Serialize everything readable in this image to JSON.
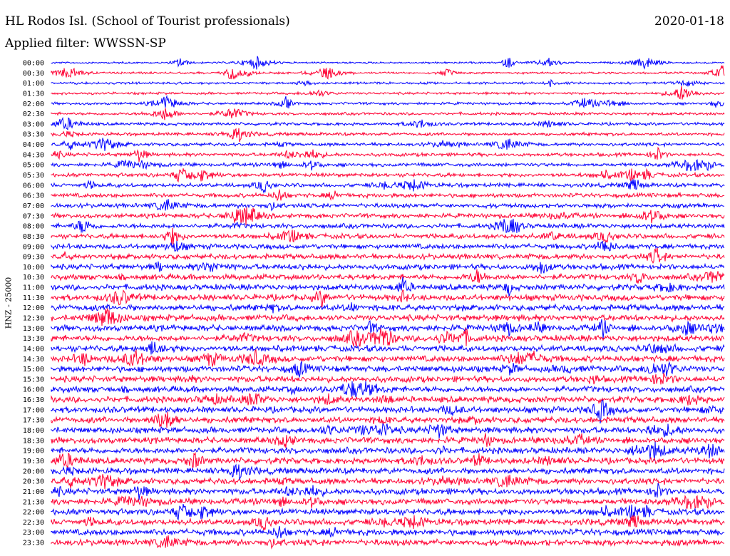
{
  "header": {
    "station": "HL Rodos Isl. (School of Tourist professionals)",
    "date": "2020-01-18",
    "filter": "Applied filter: WWSSN-SP"
  },
  "chart_data": {
    "type": "line",
    "title": "HL Rodos Isl. (School of Tourist professionals)",
    "ylabel": "HNZ - 25000",
    "xlabel": "",
    "series_colors": [
      "#0000ff",
      "#ff0033"
    ],
    "grid": false,
    "rows": [
      {
        "time": "00:00",
        "color": "#0000ff"
      },
      {
        "time": "00:30",
        "color": "#ff0033"
      },
      {
        "time": "01:00",
        "color": "#0000ff"
      },
      {
        "time": "01:30",
        "color": "#ff0033"
      },
      {
        "time": "02:00",
        "color": "#0000ff"
      },
      {
        "time": "02:30",
        "color": "#ff0033"
      },
      {
        "time": "03:00",
        "color": "#0000ff"
      },
      {
        "time": "03:30",
        "color": "#ff0033"
      },
      {
        "time": "04:00",
        "color": "#0000ff"
      },
      {
        "time": "04:30",
        "color": "#ff0033"
      },
      {
        "time": "05:00",
        "color": "#0000ff"
      },
      {
        "time": "05:30",
        "color": "#ff0033"
      },
      {
        "time": "06:00",
        "color": "#0000ff"
      },
      {
        "time": "06:30",
        "color": "#ff0033"
      },
      {
        "time": "07:00",
        "color": "#0000ff"
      },
      {
        "time": "07:30",
        "color": "#ff0033"
      },
      {
        "time": "08:00",
        "color": "#0000ff"
      },
      {
        "time": "08:30",
        "color": "#ff0033"
      },
      {
        "time": "09:00",
        "color": "#0000ff"
      },
      {
        "time": "09:30",
        "color": "#ff0033"
      },
      {
        "time": "10:00",
        "color": "#0000ff"
      },
      {
        "time": "10:30",
        "color": "#ff0033"
      },
      {
        "time": "11:00",
        "color": "#0000ff"
      },
      {
        "time": "11:30",
        "color": "#ff0033"
      },
      {
        "time": "12:00",
        "color": "#0000ff"
      },
      {
        "time": "12:30",
        "color": "#ff0033"
      },
      {
        "time": "13:00",
        "color": "#0000ff"
      },
      {
        "time": "13:30",
        "color": "#ff0033"
      },
      {
        "time": "14:00",
        "color": "#0000ff"
      },
      {
        "time": "14:30",
        "color": "#ff0033"
      },
      {
        "time": "15:00",
        "color": "#0000ff"
      },
      {
        "time": "15:30",
        "color": "#ff0033"
      },
      {
        "time": "16:00",
        "color": "#0000ff"
      },
      {
        "time": "16:30",
        "color": "#ff0033"
      },
      {
        "time": "17:00",
        "color": "#0000ff"
      },
      {
        "time": "17:30",
        "color": "#ff0033"
      },
      {
        "time": "18:00",
        "color": "#0000ff"
      },
      {
        "time": "18:30",
        "color": "#ff0033"
      },
      {
        "time": "19:00",
        "color": "#0000ff"
      },
      {
        "time": "19:30",
        "color": "#ff0033"
      },
      {
        "time": "20:00",
        "color": "#0000ff"
      },
      {
        "time": "20:30",
        "color": "#ff0033"
      },
      {
        "time": "21:00",
        "color": "#0000ff"
      },
      {
        "time": "21:30",
        "color": "#ff0033"
      },
      {
        "time": "22:00",
        "color": "#0000ff"
      },
      {
        "time": "22:30",
        "color": "#ff0033"
      },
      {
        "time": "23:00",
        "color": "#0000ff"
      },
      {
        "time": "23:30",
        "color": "#ff0033"
      }
    ]
  }
}
